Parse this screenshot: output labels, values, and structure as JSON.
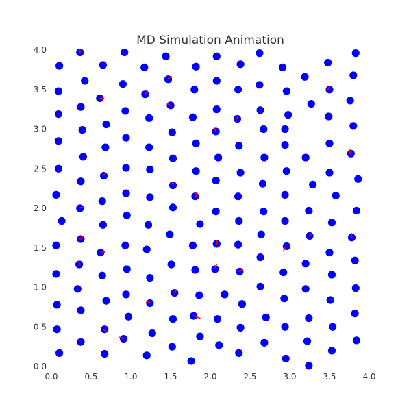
{
  "chart_data": {
    "type": "scatter",
    "title": "MD Simulation Animation",
    "xlabel": "",
    "ylabel": "",
    "xlim": [
      0,
      4
    ],
    "ylim": [
      0,
      4
    ],
    "xticks": [
      "0.0",
      "0.5",
      "1.0",
      "1.5",
      "2.0",
      "2.5",
      "3.0",
      "3.5",
      "4.0"
    ],
    "yticks": [
      "0.0",
      "0.5",
      "1.0",
      "1.5",
      "2.0",
      "2.5",
      "3.0",
      "3.5",
      "4.0"
    ],
    "grid": false,
    "colors": {
      "particle": "#0000ff",
      "velocity": "#ff0000",
      "text": "#333333"
    },
    "points": [
      [
        0.36,
        3.97
      ],
      [
        0.92,
        3.97
      ],
      [
        1.44,
        3.92
      ],
      [
        2.08,
        3.92
      ],
      [
        2.62,
        3.96
      ],
      [
        3.83,
        3.96
      ],
      [
        0.1,
        3.8
      ],
      [
        0.65,
        3.81
      ],
      [
        1.17,
        3.78
      ],
      [
        1.82,
        3.79
      ],
      [
        2.38,
        3.82
      ],
      [
        2.91,
        3.78
      ],
      [
        3.48,
        3.84
      ],
      [
        0.42,
        3.61
      ],
      [
        0.9,
        3.57
      ],
      [
        1.47,
        3.63
      ],
      [
        2.08,
        3.61
      ],
      [
        3.19,
        3.66
      ],
      [
        3.8,
        3.68
      ],
      [
        0.09,
        3.48
      ],
      [
        0.61,
        3.39
      ],
      [
        1.18,
        3.44
      ],
      [
        1.8,
        3.5
      ],
      [
        2.35,
        3.5
      ],
      [
        2.62,
        3.56
      ],
      [
        2.96,
        3.48
      ],
      [
        3.5,
        3.5
      ],
      [
        0.37,
        3.28
      ],
      [
        0.93,
        3.23
      ],
      [
        1.5,
        3.3
      ],
      [
        2.08,
        3.25
      ],
      [
        3.27,
        3.32
      ],
      [
        3.76,
        3.36
      ],
      [
        0.09,
        3.19
      ],
      [
        0.69,
        3.06
      ],
      [
        1.23,
        3.14
      ],
      [
        1.78,
        3.15
      ],
      [
        2.34,
        3.13
      ],
      [
        2.63,
        3.24
      ],
      [
        2.98,
        3.18
      ],
      [
        3.49,
        3.16
      ],
      [
        0.39,
        2.99
      ],
      [
        1.52,
        2.96
      ],
      [
        2.07,
        2.97
      ],
      [
        2.67,
        3.0
      ],
      [
        2.94,
        3.0
      ],
      [
        3.8,
        3.04
      ],
      [
        0.09,
        2.85
      ],
      [
        0.68,
        2.77
      ],
      [
        0.94,
        2.89
      ],
      [
        1.23,
        2.77
      ],
      [
        1.82,
        2.82
      ],
      [
        2.36,
        2.79
      ],
      [
        2.94,
        2.8
      ],
      [
        3.5,
        2.82
      ],
      [
        0.4,
        2.65
      ],
      [
        1.53,
        2.63
      ],
      [
        2.1,
        2.64
      ],
      [
        2.68,
        2.64
      ],
      [
        3.2,
        2.64
      ],
      [
        3.77,
        2.69
      ],
      [
        0.09,
        2.5
      ],
      [
        0.66,
        2.41
      ],
      [
        0.94,
        2.51
      ],
      [
        1.24,
        2.49
      ],
      [
        1.82,
        2.47
      ],
      [
        2.38,
        2.45
      ],
      [
        2.96,
        2.47
      ],
      [
        3.5,
        2.45
      ],
      [
        0.37,
        2.34
      ],
      [
        1.53,
        2.29
      ],
      [
        2.07,
        2.35
      ],
      [
        2.66,
        2.31
      ],
      [
        3.29,
        2.3
      ],
      [
        3.86,
        2.37
      ],
      [
        0.06,
        2.17
      ],
      [
        0.64,
        2.09
      ],
      [
        0.94,
        2.19
      ],
      [
        1.24,
        2.14
      ],
      [
        1.81,
        2.15
      ],
      [
        2.35,
        2.15
      ],
      [
        2.94,
        2.17
      ],
      [
        3.58,
        2.16
      ],
      [
        0.36,
        2.0
      ],
      [
        1.53,
        2.01
      ],
      [
        2.07,
        1.96
      ],
      [
        2.67,
        1.96
      ],
      [
        3.24,
        1.97
      ],
      [
        3.84,
        1.97
      ],
      [
        0.13,
        1.84
      ],
      [
        0.65,
        1.79
      ],
      [
        0.95,
        1.91
      ],
      [
        1.22,
        1.79
      ],
      [
        1.87,
        1.8
      ],
      [
        2.36,
        1.84
      ],
      [
        2.94,
        1.84
      ],
      [
        3.53,
        1.82
      ],
      [
        0.37,
        1.61
      ],
      [
        1.49,
        1.67
      ],
      [
        2.08,
        1.55
      ],
      [
        2.64,
        1.67
      ],
      [
        3.25,
        1.65
      ],
      [
        3.78,
        1.63
      ],
      [
        0.06,
        1.53
      ],
      [
        0.62,
        1.44
      ],
      [
        0.93,
        1.53
      ],
      [
        1.2,
        1.48
      ],
      [
        1.78,
        1.53
      ],
      [
        2.35,
        1.54
      ],
      [
        2.96,
        1.52
      ],
      [
        3.5,
        1.44
      ],
      [
        0.35,
        1.29
      ],
      [
        1.51,
        1.29
      ],
      [
        2.06,
        1.23
      ],
      [
        2.63,
        1.38
      ],
      [
        3.2,
        1.3
      ],
      [
        3.82,
        1.34
      ],
      [
        0.06,
        1.17
      ],
      [
        0.64,
        1.15
      ],
      [
        0.95,
        1.23
      ],
      [
        1.24,
        1.12
      ],
      [
        1.81,
        1.22
      ],
      [
        2.37,
        1.2
      ],
      [
        2.92,
        1.19
      ],
      [
        3.53,
        1.16
      ],
      [
        0.33,
        0.98
      ],
      [
        0.94,
        0.91
      ],
      [
        1.55,
        0.93
      ],
      [
        1.86,
        0.9
      ],
      [
        2.18,
        0.91
      ],
      [
        2.63,
        1.01
      ],
      [
        3.2,
        0.98
      ],
      [
        3.83,
        0.99
      ],
      [
        0.07,
        0.78
      ],
      [
        0.69,
        0.83
      ],
      [
        1.24,
        0.8
      ],
      [
        2.4,
        0.79
      ],
      [
        2.93,
        0.86
      ],
      [
        3.51,
        0.84
      ],
      [
        0.37,
        0.71
      ],
      [
        0.97,
        0.63
      ],
      [
        1.53,
        0.6
      ],
      [
        1.79,
        0.64
      ],
      [
        2.09,
        0.6
      ],
      [
        2.7,
        0.62
      ],
      [
        3.24,
        0.61
      ],
      [
        3.82,
        0.67
      ],
      [
        0.07,
        0.47
      ],
      [
        0.67,
        0.47
      ],
      [
        1.27,
        0.42
      ],
      [
        1.87,
        0.38
      ],
      [
        2.38,
        0.49
      ],
      [
        2.94,
        0.5
      ],
      [
        3.54,
        0.5
      ],
      [
        0.37,
        0.31
      ],
      [
        0.91,
        0.35
      ],
      [
        1.52,
        0.25
      ],
      [
        2.11,
        0.27
      ],
      [
        2.68,
        0.3
      ],
      [
        3.22,
        0.32
      ],
      [
        3.84,
        0.33
      ],
      [
        0.1,
        0.17
      ],
      [
        0.67,
        0.16
      ],
      [
        1.2,
        0.14
      ],
      [
        1.76,
        0.07
      ],
      [
        2.36,
        0.17
      ],
      [
        2.95,
        0.1
      ],
      [
        3.53,
        0.2
      ],
      [
        3.24,
        0.01
      ]
    ],
    "velocities": [
      [
        1.79,
        0.64,
        0.08,
        -0.03
      ],
      [
        1.82,
        2.15,
        0.0,
        0.05
      ],
      [
        1.54,
        2.31,
        -0.04,
        0.02
      ],
      [
        2.06,
        1.25,
        0.02,
        0.04
      ],
      [
        1.25,
        0.8,
        -0.05,
        0.02
      ],
      [
        1.55,
        0.93,
        0.02,
        0.03
      ],
      [
        2.35,
        1.2,
        0.04,
        0.02
      ],
      [
        2.94,
        1.5,
        -0.02,
        -0.04
      ],
      [
        3.5,
        0.85,
        0.04,
        0.0
      ],
      [
        2.33,
        3.13,
        0.02,
        0.04
      ],
      [
        1.47,
        3.64,
        0.04,
        0.02
      ],
      [
        0.62,
        3.39,
        0.04,
        0.0
      ],
      [
        2.07,
        2.97,
        -0.02,
        0.04
      ],
      [
        3.76,
        2.69,
        0.0,
        0.05
      ],
      [
        3.78,
        1.63,
        0.0,
        0.05
      ],
      [
        3.24,
        1.65,
        0.04,
        0.03
      ],
      [
        0.65,
        0.47,
        0.04,
        -0.03
      ],
      [
        0.9,
        0.35,
        -0.04,
        0.02
      ],
      [
        0.36,
        1.29,
        -0.02,
        0.04
      ],
      [
        0.63,
        1.44,
        0.04,
        0.01
      ],
      [
        0.36,
        1.61,
        0.03,
        0.03
      ],
      [
        0.37,
        2.01,
        0.04,
        0.0
      ],
      [
        0.65,
        2.41,
        0.03,
        0.03
      ],
      [
        1.5,
        3.3,
        -0.04,
        0.02
      ],
      [
        2.08,
        1.55,
        0.0,
        0.04
      ],
      [
        1.18,
        3.44,
        0.03,
        0.04
      ],
      [
        0.36,
        3.96,
        0.0,
        0.05
      ],
      [
        3.48,
        3.5,
        0.02,
        0.04
      ]
    ]
  }
}
